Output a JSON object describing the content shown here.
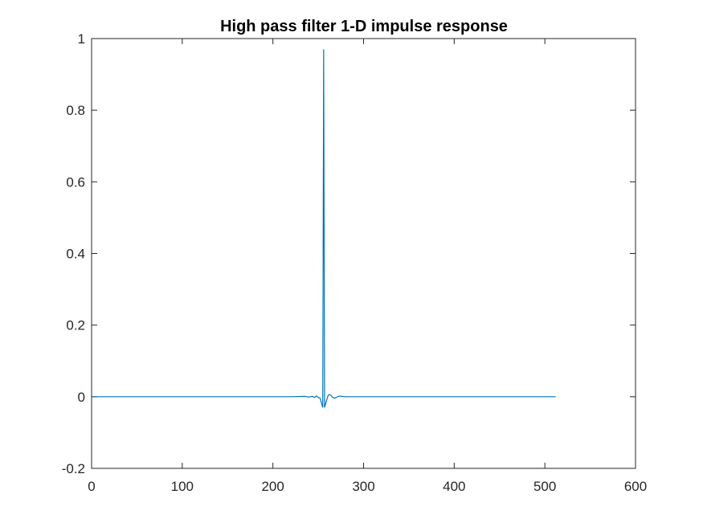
{
  "chart_data": {
    "type": "line",
    "title": "High pass filter 1-D impulse response",
    "xlabel": "",
    "ylabel": "",
    "xlim": [
      0,
      600
    ],
    "ylim": [
      -0.2,
      1
    ],
    "xticks": [
      0,
      100,
      200,
      300,
      400,
      500,
      600
    ],
    "yticks": [
      -0.2,
      0,
      0.2,
      0.4,
      0.6,
      0.8,
      1
    ],
    "xtick_labels": [
      "0",
      "100",
      "200",
      "300",
      "400",
      "500",
      "600"
    ],
    "ytick_labels": [
      "-0.2",
      "0",
      "0.2",
      "0.4",
      "0.6",
      "0.8",
      "1"
    ],
    "grid": false,
    "color": "#0072BD",
    "series": [
      {
        "x": [
          1,
          200,
          220,
          235,
          240,
          243,
          246,
          248,
          250,
          252,
          253,
          254,
          255,
          256,
          257,
          258,
          259,
          260,
          261,
          262,
          264,
          266,
          268,
          270,
          273,
          276,
          280,
          290,
          320,
          400,
          512
        ],
        "y": [
          0,
          0,
          0,
          0.001,
          -0.001,
          0.001,
          -0.002,
          0.002,
          -0.002,
          -0.004,
          -0.012,
          -0.022,
          -0.03,
          0.97,
          -0.03,
          -0.022,
          -0.012,
          -0.004,
          0.004,
          0.006,
          0.004,
          -0.002,
          -0.004,
          -0.002,
          0.002,
          0.001,
          0,
          0,
          0,
          0,
          0
        ]
      }
    ]
  }
}
